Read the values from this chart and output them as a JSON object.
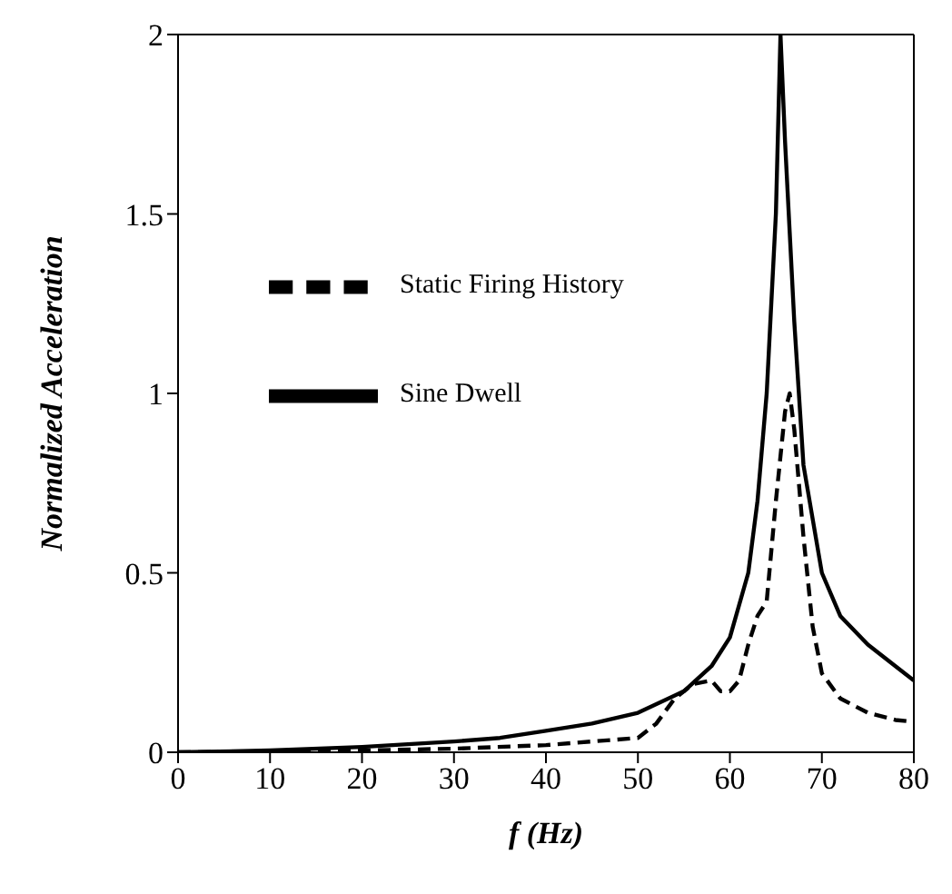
{
  "chart_data": {
    "type": "line",
    "xlabel": "f  (Hz)",
    "ylabel": "Normalized   Acceleration",
    "xlim": [
      0,
      80
    ],
    "ylim": [
      0,
      2
    ],
    "xticks": [
      0,
      10,
      20,
      30,
      40,
      50,
      60,
      70,
      80
    ],
    "yticks": [
      0,
      0.5,
      1,
      1.5,
      2
    ],
    "legend": "top left",
    "grid": false,
    "marker": "none",
    "series": [
      {
        "name": "Static Firing History",
        "color": "#000000",
        "line_style": "dashed",
        "x": [
          0,
          10,
          20,
          30,
          40,
          45,
          50,
          52,
          54,
          56,
          58,
          59,
          60,
          61,
          62,
          63,
          64,
          65,
          66,
          66.5,
          67,
          68,
          69,
          70,
          72,
          75,
          78,
          80
        ],
        "values": [
          0,
          0.002,
          0.005,
          0.01,
          0.02,
          0.03,
          0.04,
          0.08,
          0.15,
          0.19,
          0.2,
          0.17,
          0.17,
          0.2,
          0.3,
          0.38,
          0.42,
          0.7,
          0.95,
          1.0,
          0.9,
          0.6,
          0.35,
          0.22,
          0.15,
          0.11,
          0.09,
          0.085
        ]
      },
      {
        "name": "Sine Dwell",
        "color": "#000000",
        "line_style": "solid",
        "x": [
          0,
          10,
          20,
          30,
          35,
          40,
          45,
          50,
          55,
          58,
          60,
          62,
          63,
          64,
          65,
          65.5,
          66,
          67,
          68,
          70,
          72,
          75,
          78,
          80
        ],
        "values": [
          0,
          0.005,
          0.015,
          0.03,
          0.04,
          0.06,
          0.08,
          0.11,
          0.17,
          0.24,
          0.32,
          0.5,
          0.7,
          1.0,
          1.5,
          2.0,
          1.7,
          1.2,
          0.8,
          0.5,
          0.38,
          0.3,
          0.24,
          0.2
        ]
      }
    ]
  }
}
